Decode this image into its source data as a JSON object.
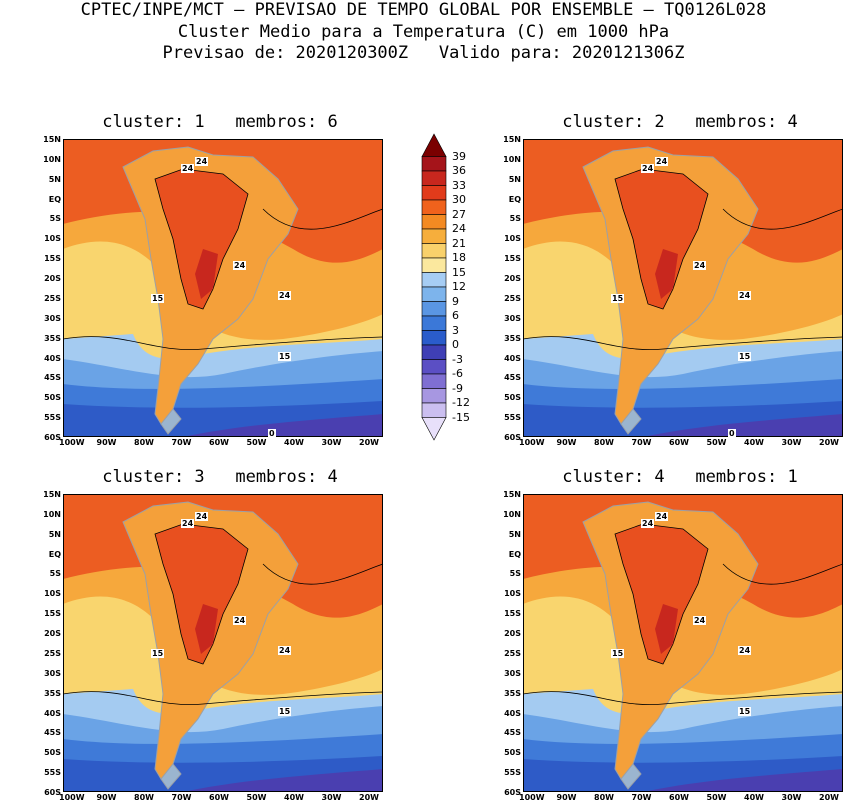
{
  "header": {
    "line1": "CPTEC/INPE/MCT – PREVISAO DE TEMPO GLOBAL POR ENSEMBLE – TQ0126L028",
    "line2": "Cluster Medio para a Temperatura (C) em 1000 hPa",
    "line3": "Previsao de: 2020120300Z   Valido para: 2020121306Z"
  },
  "panels": [
    {
      "title": "cluster: 1   membros: 6",
      "contour_labels": [
        "24",
        "24",
        "24",
        "24",
        "15",
        "15",
        "0"
      ]
    },
    {
      "title": "cluster: 2   membros: 4",
      "contour_labels": [
        "24",
        "24",
        "24",
        "24",
        "15",
        "15",
        "0"
      ]
    },
    {
      "title": "cluster: 3   membros: 4",
      "contour_labels": [
        "24",
        "24",
        "24",
        "24",
        "15",
        "15"
      ]
    },
    {
      "title": "cluster: 4   membros: 1",
      "contour_labels": [
        "24",
        "24",
        "24",
        "24",
        "15",
        "15"
      ]
    }
  ],
  "lat_labels": [
    "15N",
    "10N",
    "5N",
    "EQ",
    "5S",
    "10S",
    "15S",
    "20S",
    "25S",
    "30S",
    "35S",
    "40S",
    "45S",
    "50S",
    "55S",
    "60S"
  ],
  "lon_labels": [
    "100W",
    "90W",
    "80W",
    "70W",
    "60W",
    "50W",
    "40W",
    "30W",
    "20W"
  ],
  "colorbar": {
    "labels": [
      "39",
      "36",
      "33",
      "30",
      "27",
      "24",
      "21",
      "18",
      "15",
      "12",
      "9",
      "6",
      "3",
      "0",
      "-3",
      "-6",
      "-9",
      "-12",
      "-15"
    ],
    "colors": [
      "#7a0000",
      "#a5141a",
      "#c8271e",
      "#e13b1b",
      "#f0621c",
      "#f38a22",
      "#f6ae3c",
      "#f9d16b",
      "#fbe89e",
      "#a6cdf4",
      "#7db4ec",
      "#5a96e3",
      "#3b78d8",
      "#2a5ccb",
      "#3f3fb5",
      "#5b4fc4",
      "#7f6fd2",
      "#a797e1",
      "#cbbff0",
      "#e8e0fa"
    ]
  }
}
